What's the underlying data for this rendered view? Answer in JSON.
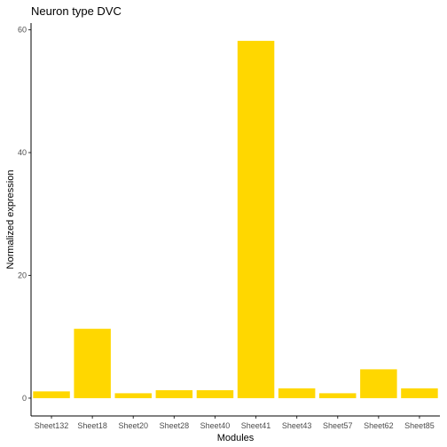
{
  "chart_data": {
    "type": "bar",
    "title": "Neuron type DVC",
    "xlabel": "Modules",
    "ylabel": "Normalized expression",
    "categories": [
      "Sheet132",
      "Sheet18",
      "Sheet20",
      "Sheet28",
      "Sheet40",
      "Sheet41",
      "Sheet43",
      "Sheet57",
      "Sheet62",
      "Sheet85"
    ],
    "values": [
      1.1,
      11.3,
      0.8,
      1.3,
      1.3,
      58.2,
      1.6,
      0.8,
      4.7,
      1.6
    ],
    "ylim": [
      -2.9,
      61.1
    ],
    "yticks": [
      0,
      20,
      40,
      60
    ],
    "grid": false,
    "legend": "none",
    "bar_color": "#FFD700"
  }
}
